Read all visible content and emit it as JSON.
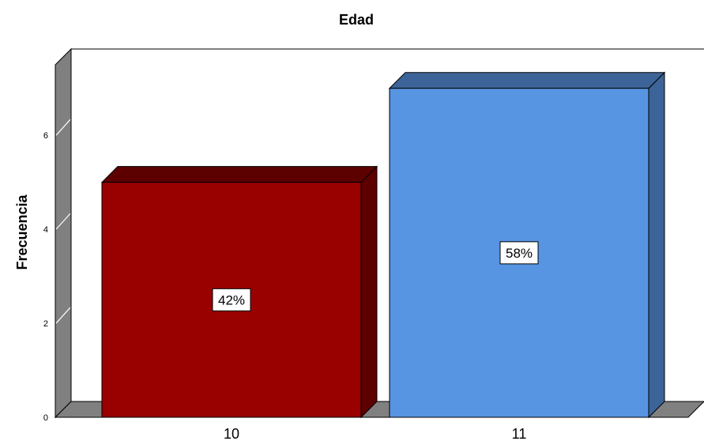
{
  "chart_data": {
    "type": "bar",
    "title": "Edad",
    "xlabel": "",
    "ylabel": "Frecuencia",
    "categories": [
      "10",
      "11"
    ],
    "values": [
      5,
      7
    ],
    "data_labels": [
      "42%",
      "58%"
    ],
    "ylim": [
      0,
      7.5
    ],
    "yticks": [
      "0",
      "2",
      "4",
      "6"
    ],
    "colors": {
      "bar_10": "#990000",
      "bar_10_top": "#5c0000",
      "bar_10_side": "#5c0000",
      "bar_11": "#5794e2",
      "bar_11_top": "#3c6498",
      "bar_11_side": "#3c6498",
      "wall": "#808080",
      "floor": "#808080"
    },
    "grid": false,
    "style": "3d"
  }
}
